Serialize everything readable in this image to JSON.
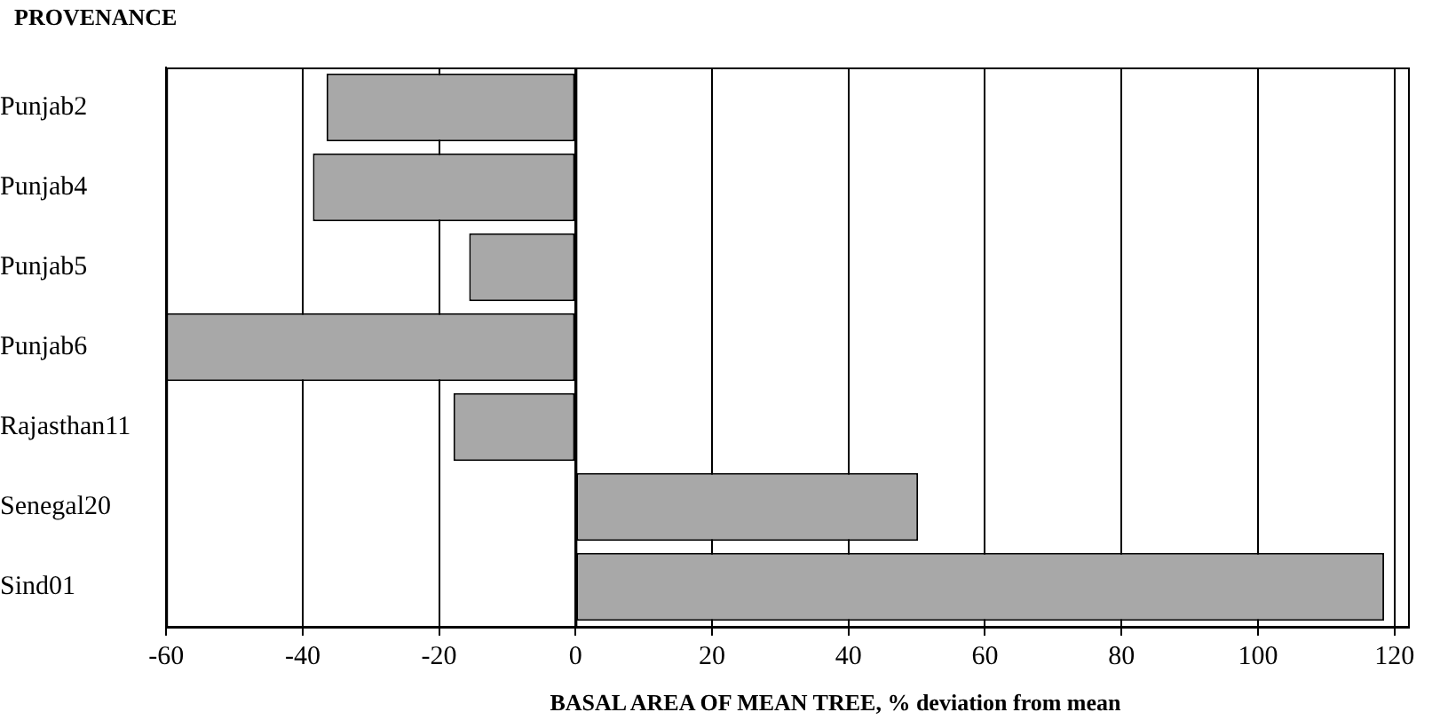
{
  "chart_data": {
    "type": "bar",
    "orientation": "horizontal",
    "ylabel": "PROVENANCE",
    "xlabel": "BASAL AREA OF MEAN TREE, % deviation from mean",
    "categories": [
      "Punjab2",
      "Punjab4",
      "Punjab5",
      "Punjab6",
      "Rajasthan11",
      "Senegal20",
      "Sind01"
    ],
    "values": [
      -36.5,
      -38.5,
      -15.6,
      -60,
      -17.9,
      50.2,
      118.5
    ],
    "color": "#a8a8a8",
    "xlim": [
      -60,
      122
    ],
    "xticks": [
      -60,
      -40,
      -20,
      0,
      20,
      40,
      60,
      80,
      100,
      120
    ],
    "grid": "x"
  }
}
